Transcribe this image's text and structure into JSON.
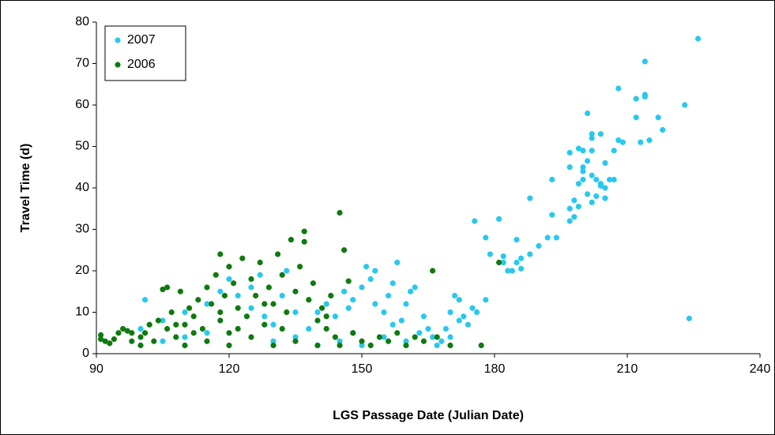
{
  "chart_data": {
    "type": "scatter",
    "xlabel": "LGS Passage Date (Julian Date)",
    "ylabel": "Travel Time (d)",
    "xlim": [
      90,
      240
    ],
    "xticks": [
      90,
      120,
      150,
      180,
      210,
      240
    ],
    "ylim": [
      0,
      80
    ],
    "yticks": [
      0,
      10,
      20,
      30,
      40,
      50,
      60,
      70,
      80
    ],
    "legend": "upper left",
    "series": [
      {
        "name": "2007",
        "color": "#29c8ec",
        "x": [
          175.5,
          178,
          179,
          181,
          182,
          182,
          183,
          184,
          185,
          185,
          186,
          186,
          188,
          188,
          190,
          192,
          193,
          193,
          194,
          197,
          197,
          197,
          197,
          198,
          198,
          199,
          199,
          199,
          200,
          200,
          200,
          200,
          201,
          201,
          201,
          202,
          202,
          202,
          202,
          202,
          203,
          203,
          204,
          204,
          204,
          205,
          205,
          205,
          206,
          207,
          207,
          208,
          208,
          209,
          212,
          212,
          213,
          214,
          214,
          214,
          215,
          217,
          218,
          223,
          224,
          226,
          101,
          105,
          110,
          115,
          118,
          120,
          122,
          125,
          128,
          130,
          132,
          135,
          138,
          140,
          142,
          144,
          146,
          148,
          150,
          151,
          152,
          153,
          155,
          156,
          157,
          158,
          159,
          160,
          162,
          163,
          164,
          165,
          166,
          168,
          169,
          170,
          171,
          172,
          172,
          174,
          175,
          176,
          178,
          148,
          145,
          150,
          155,
          160,
          140,
          135,
          130,
          115,
          110,
          105,
          100,
          125,
          127,
          133,
          153,
          161,
          147,
          157,
          167,
          170,
          173
        ],
        "values": [
          32,
          28,
          24,
          32.5,
          23.5,
          22,
          20,
          20,
          27.5,
          22,
          20.5,
          23,
          37.5,
          24,
          26,
          28,
          42,
          33.5,
          28,
          48.5,
          45,
          35,
          32,
          37,
          33,
          49.5,
          41,
          35.5,
          49,
          45,
          42,
          44,
          58,
          38.5,
          46.5,
          53,
          52,
          49,
          43,
          36.5,
          42,
          38,
          53,
          41,
          40.5,
          46,
          37.5,
          40,
          42,
          42,
          49,
          64,
          51.5,
          51,
          61.5,
          57,
          51,
          70.5,
          62.5,
          62,
          51.5,
          57,
          54,
          60,
          8.5,
          76,
          13,
          8,
          10,
          12,
          15,
          18,
          14,
          11,
          9,
          7,
          14,
          10,
          6,
          10,
          12,
          9,
          15,
          13,
          16,
          21,
          18,
          12,
          10,
          14,
          17,
          22,
          8,
          12,
          16,
          5,
          9,
          6,
          4,
          3,
          6,
          10,
          14,
          13,
          8,
          7,
          11,
          10,
          13,
          5,
          3,
          2,
          4,
          3,
          2,
          4,
          3,
          5,
          4,
          3,
          6,
          16,
          19,
          20,
          20,
          15,
          11,
          7,
          2,
          4,
          9
        ]
      },
      {
        "name": "2006",
        "color": "#0f7a0f",
        "x": [
          91,
          91,
          92,
          94,
          95,
          96,
          97,
          98,
          100,
          101,
          102,
          103,
          104,
          105,
          106,
          106,
          107,
          108,
          109,
          110,
          111,
          112,
          113,
          114,
          115,
          116,
          117,
          118,
          118,
          119,
          120,
          120,
          121,
          122,
          123,
          124,
          125,
          126,
          127,
          128,
          129,
          130,
          131,
          132,
          133,
          134,
          135,
          136,
          137,
          137,
          138,
          139,
          140,
          141,
          142,
          143,
          144,
          145,
          146,
          147,
          148,
          150,
          152,
          154,
          156,
          158,
          160,
          162,
          164,
          166,
          167,
          170,
          177,
          181,
          100,
          110,
          120,
          130,
          140,
          115,
          125,
          135,
          145,
          112,
          122,
          132,
          142,
          128,
          118,
          108,
          98,
          93
        ],
        "values": [
          4.5,
          3.5,
          3,
          3.5,
          5,
          6,
          5.5,
          3,
          4,
          5,
          7,
          3,
          8,
          15.5,
          16,
          6,
          10,
          4,
          15,
          7,
          11,
          9,
          13,
          6,
          16,
          12,
          19,
          24,
          8,
          14,
          21,
          5,
          17,
          11,
          23,
          9,
          18,
          14,
          22,
          7,
          16,
          12,
          24,
          19,
          10,
          27.5,
          15,
          21,
          29.5,
          27,
          13,
          17,
          8,
          11,
          6,
          14,
          4,
          34,
          25,
          17.5,
          5,
          3,
          2,
          4,
          3,
          5,
          2,
          4,
          3,
          20,
          4,
          2,
          2,
          22,
          2,
          2,
          2,
          2,
          2,
          3,
          4,
          3,
          2,
          5,
          6,
          6,
          9,
          12,
          10,
          7,
          5,
          2.5
        ]
      }
    ]
  }
}
